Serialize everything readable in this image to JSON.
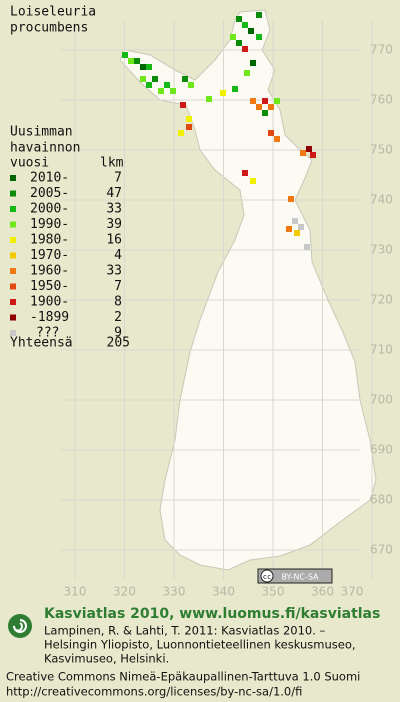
{
  "header": {
    "title_line1": "Loiseleuria",
    "title_line2": "procumbens"
  },
  "legend": {
    "heading_line1": "Uusimman",
    "heading_line2": "havainnon",
    "heading_line3": "vuosi",
    "count_heading": "lkm",
    "items": [
      {
        "label": "2010-",
        "count": 7,
        "color": "#006400"
      },
      {
        "label": "2005-",
        "count": 47,
        "color": "#0a8c0a"
      },
      {
        "label": "2000-",
        "count": 33,
        "color": "#16b816"
      },
      {
        "label": "1990-",
        "count": 39,
        "color": "#6ee81a"
      },
      {
        "label": "1980-",
        "count": 16,
        "color": "#f0f000"
      },
      {
        "label": "1970-",
        "count": 4,
        "color": "#f5c800"
      },
      {
        "label": "1960-",
        "count": 33,
        "color": "#f07810"
      },
      {
        "label": "1950-",
        "count": 7,
        "color": "#e04a10"
      },
      {
        "label": "1900-",
        "count": 8,
        "color": "#d01818"
      },
      {
        "label": "-1899",
        "count": 2,
        "color": "#900000"
      },
      {
        "label": "???",
        "count": 9,
        "color": "#c8c8c8"
      }
    ],
    "total_label": "Yhteensä",
    "total": 205
  },
  "grid": {
    "north_labels": [
      770,
      760,
      750,
      740,
      730,
      720,
      710,
      700,
      690,
      680,
      670
    ],
    "east_labels": [
      310,
      320,
      330,
      340,
      350,
      360,
      370
    ]
  },
  "badge": {
    "cc": "cc",
    "license": "BY-NC-SA"
  },
  "footer": {
    "brand": "Kasviatlas 2010, www.luomus.fi/kasviatlas",
    "citation_line1": "Lampinen, R. & Lahti, T. 2011: Kasviatlas 2010. –",
    "citation_line2": "Helsingin Yliopisto, Luonnontieteellinen keskusmuseo,",
    "citation_line3": "Kasvimuseo, Helsinki.",
    "license_line1": "Creative Commons Nimeä-Epäkaupallinen-Tarttuva 1.0 Suomi",
    "license_line2": "http://creativecommons.org/licenses/by-nc-sa/1.0/fi"
  }
}
